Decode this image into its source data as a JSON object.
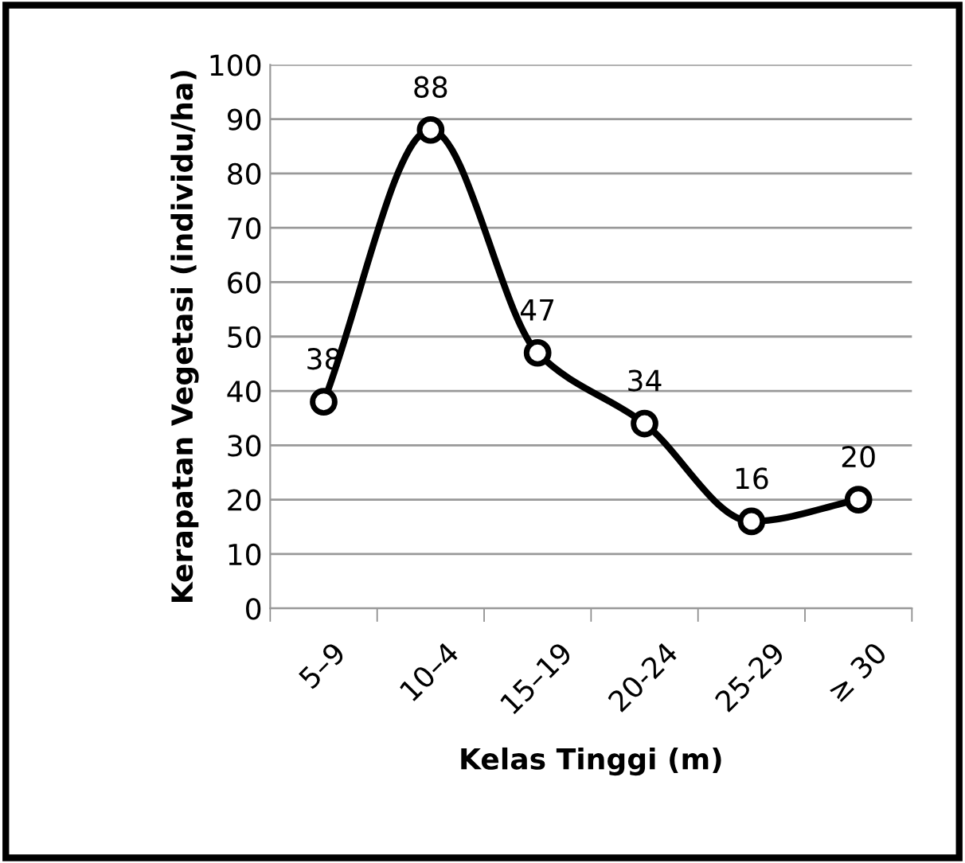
{
  "chart_data": {
    "type": "line",
    "xlabel": "Kelas Tinggi (m)",
    "ylabel": "Kerapatan Vegetasi (individu/ha)",
    "categories": [
      "5–9",
      "10–4",
      "15–19",
      "20-24",
      "25-29",
      "≥ 30"
    ],
    "series": [
      {
        "color": "#000000",
        "values": [
          38,
          88,
          47,
          34,
          16,
          20
        ]
      }
    ],
    "ylim": [
      0,
      100
    ],
    "yticks": [
      0,
      10,
      20,
      30,
      40,
      50,
      60,
      70,
      80,
      90,
      100
    ],
    "grid": "y",
    "marker": "circle",
    "line_style": "solid",
    "data_labels": true
  }
}
